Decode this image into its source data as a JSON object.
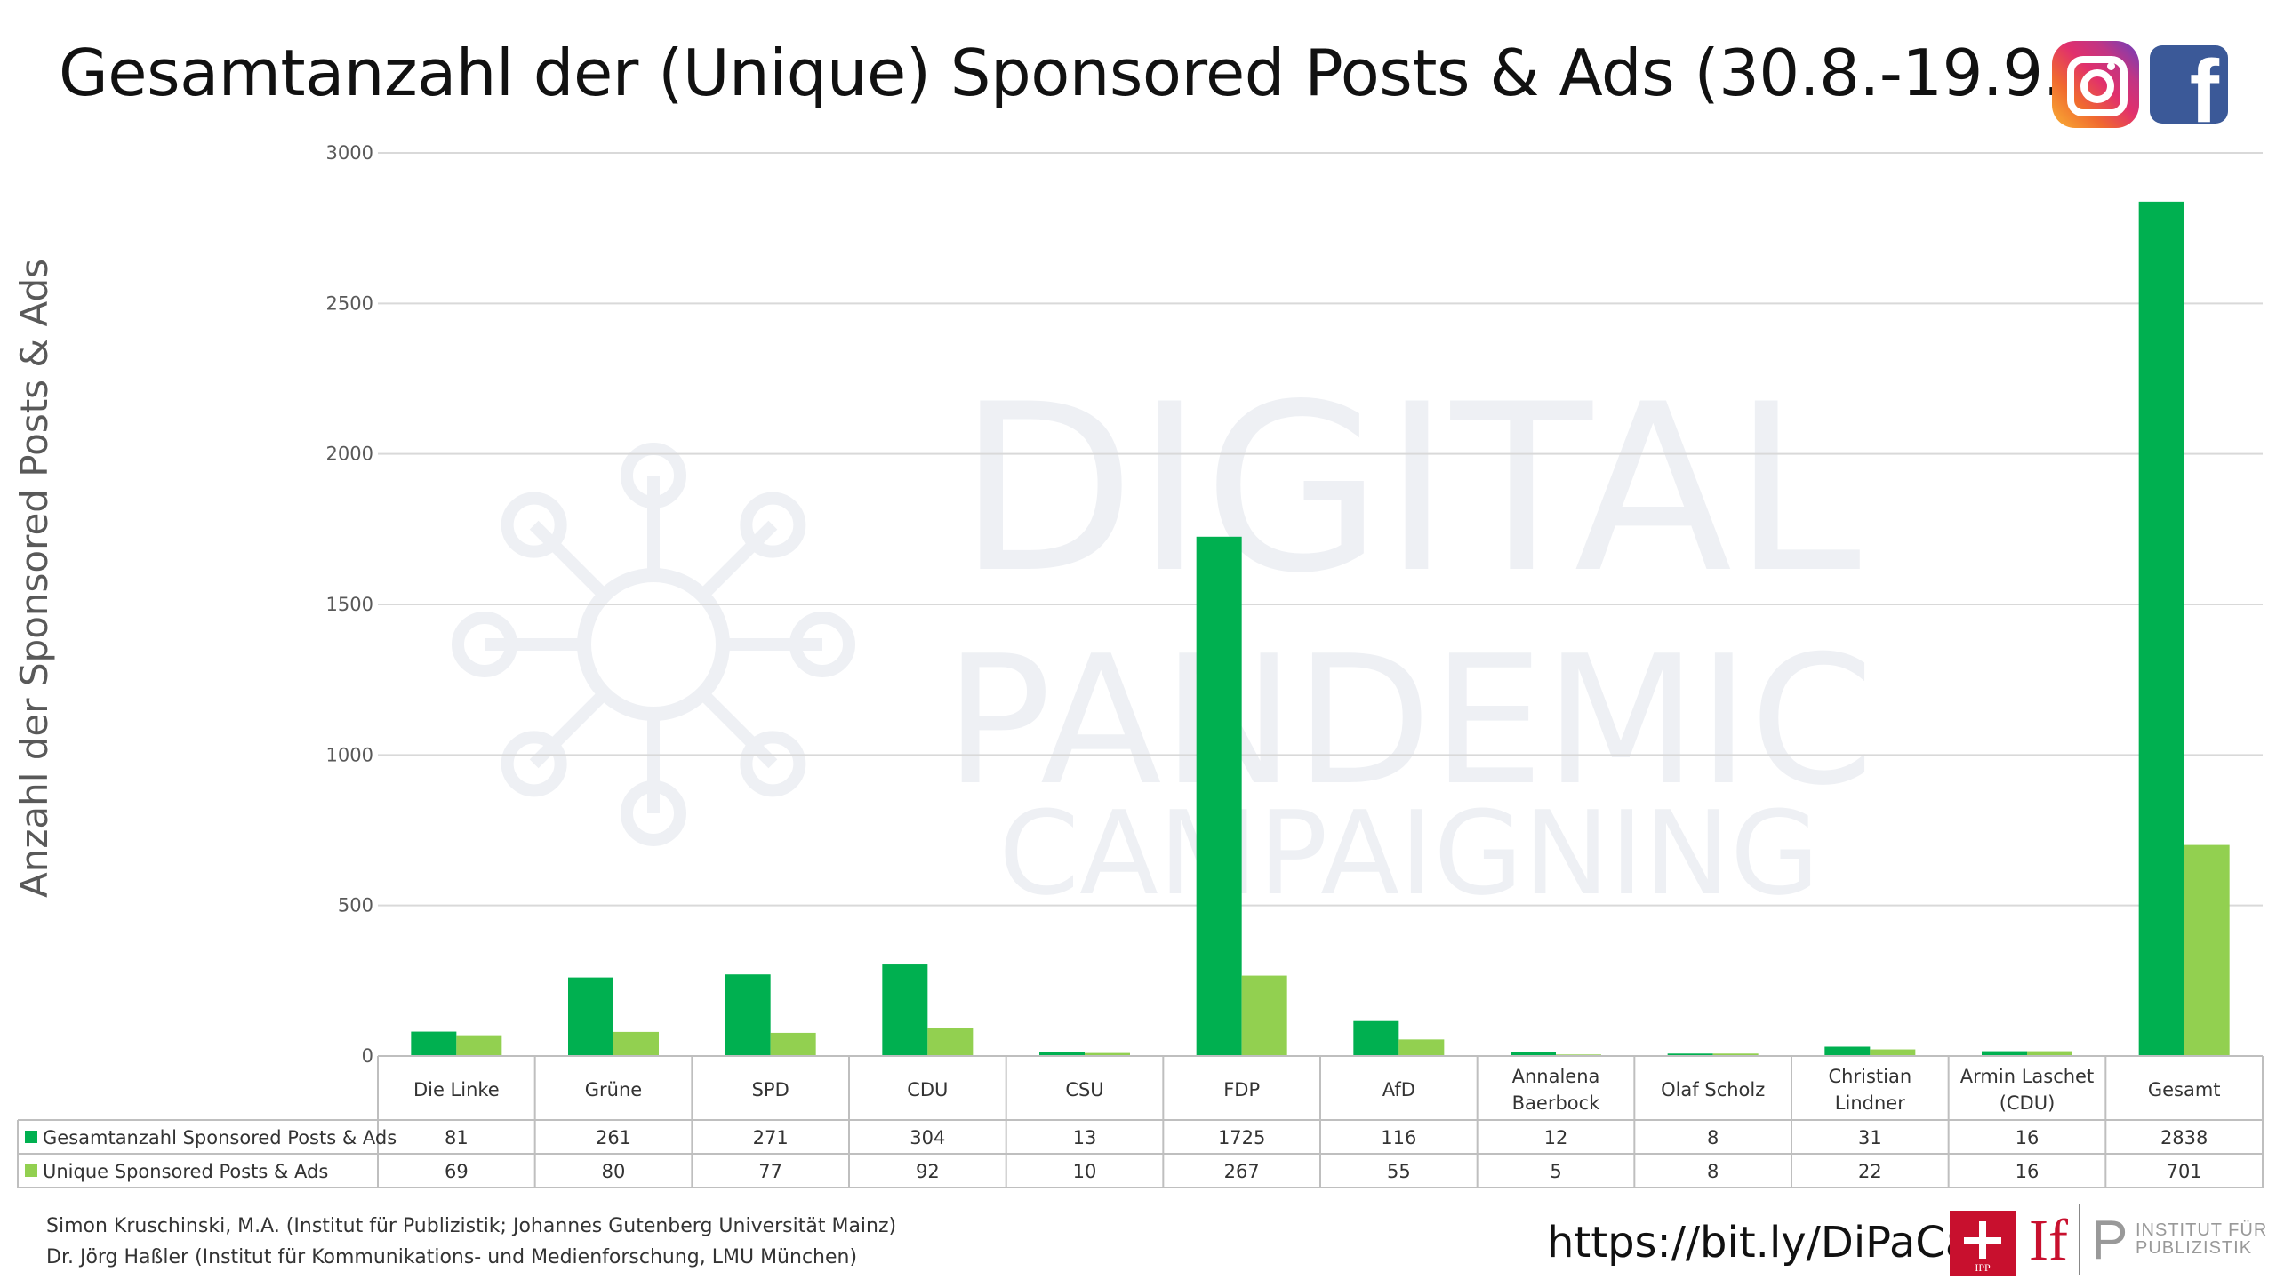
{
  "header": {
    "title": "Gesamtanzahl der (Unique) Sponsored Posts & Ads (30.8.-19.9.)",
    "logos": [
      "instagram-logo",
      "facebook-logo"
    ]
  },
  "chart_data": {
    "type": "bar",
    "title": "Gesamtanzahl der (Unique) Sponsored Posts & Ads (30.8.-19.9.)",
    "ylabel": "Anzahl der Sponsored Posts & Ads",
    "xlabel": "",
    "ylim": [
      0,
      3000
    ],
    "yticks": [
      0,
      500,
      1000,
      1500,
      2000,
      2500,
      3000
    ],
    "grid": true,
    "legend": "data-table-left",
    "categories": [
      [
        "Die Linke"
      ],
      [
        "Grüne"
      ],
      [
        "SPD"
      ],
      [
        "CDU"
      ],
      [
        "CSU"
      ],
      [
        "FDP"
      ],
      [
        "AfD"
      ],
      [
        "Annalena",
        "Baerbock"
      ],
      [
        "Olaf Scholz"
      ],
      [
        "Christian",
        "Lindner"
      ],
      [
        "Armin Laschet",
        "(CDU)"
      ],
      [
        "Gesamt"
      ]
    ],
    "series": [
      {
        "name": "Gesamtanzahl Sponsored Posts & Ads",
        "color": "#00b050",
        "values": [
          81,
          261,
          271,
          304,
          13,
          1725,
          116,
          12,
          8,
          31,
          16,
          2838
        ]
      },
      {
        "name": "Unique Sponsored Posts & Ads",
        "color": "#92d050",
        "values": [
          69,
          80,
          77,
          92,
          10,
          267,
          55,
          5,
          8,
          22,
          16,
          701
        ]
      }
    ]
  },
  "watermark": {
    "lines": [
      "DIGITAL",
      "PANDEMIC",
      "CAMPAIGNING"
    ]
  },
  "footer": {
    "authors": [
      "Simon Kruschinski, M.A. (Institut für Publizistik; Johannes Gutenberg Universität Mainz)",
      "Dr. Jörg Haßler (Institut für Kommunikations- und Medienforschung, LMU München)"
    ],
    "url": "https://bit.ly/DiPaCa",
    "ipp_logo_text": "IPP",
    "ifp_logo": {
      "if": "If",
      "p": "P",
      "name_line1": "INSTITUT FÜR",
      "name_line2": "PUBLIZISTIK"
    }
  },
  "colors": {
    "series1": "#00b050",
    "series2": "#92d050",
    "grid": "#d9d9d9",
    "table_border": "#bfbfbf"
  }
}
